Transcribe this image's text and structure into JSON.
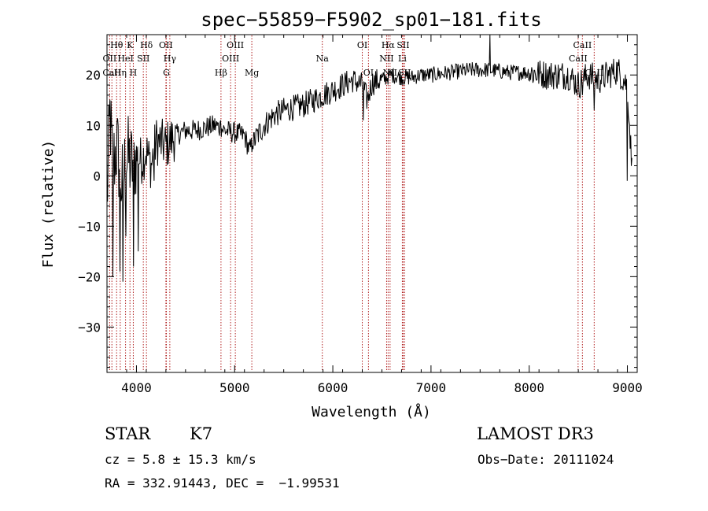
{
  "chart_data": {
    "type": "line",
    "title": "spec−55859−F5902_sp01−181.fits",
    "xlabel": "Wavelength (Å)",
    "ylabel": "Flux (relative)",
    "xlim": [
      3700,
      9100
    ],
    "ylim": [
      -39,
      28
    ],
    "xticks": [
      4000,
      5000,
      6000,
      7000,
      8000,
      9000
    ],
    "yticks": [
      -30,
      -20,
      -10,
      0,
      10,
      20
    ],
    "grid": false,
    "line_color": "#000000",
    "marker_color": "#b22222",
    "spectrum_knots": [
      [
        3700,
        -5
      ],
      [
        3730,
        12
      ],
      [
        3760,
        2
      ],
      [
        3800,
        6
      ],
      [
        3850,
        -2
      ],
      [
        3900,
        4
      ],
      [
        3950,
        2
      ],
      [
        4000,
        4
      ],
      [
        4050,
        3
      ],
      [
        4100,
        5
      ],
      [
        4150,
        2
      ],
      [
        4200,
        7
      ],
      [
        4300,
        6
      ],
      [
        4400,
        8
      ],
      [
        4500,
        9
      ],
      [
        4600,
        9
      ],
      [
        4700,
        9.5
      ],
      [
        4800,
        10
      ],
      [
        4900,
        9
      ],
      [
        5000,
        8.5
      ],
      [
        5100,
        8
      ],
      [
        5150,
        5
      ],
      [
        5200,
        7
      ],
      [
        5300,
        10
      ],
      [
        5400,
        12
      ],
      [
        5500,
        13
      ],
      [
        5600,
        13.5
      ],
      [
        5700,
        14
      ],
      [
        5800,
        15
      ],
      [
        5900,
        16
      ],
      [
        6000,
        17
      ],
      [
        6100,
        18
      ],
      [
        6200,
        19
      ],
      [
        6300,
        18
      ],
      [
        6350,
        15
      ],
      [
        6400,
        18.5
      ],
      [
        6500,
        19
      ],
      [
        6600,
        20
      ],
      [
        6700,
        19.5
      ],
      [
        6800,
        19.5
      ],
      [
        6900,
        20
      ],
      [
        7000,
        20
      ],
      [
        7200,
        20.5
      ],
      [
        7400,
        21
      ],
      [
        7600,
        21
      ],
      [
        7800,
        20.5
      ],
      [
        8000,
        20.5
      ],
      [
        8200,
        20
      ],
      [
        8400,
        20
      ],
      [
        8500,
        18
      ],
      [
        8600,
        20
      ],
      [
        8700,
        19
      ],
      [
        8800,
        20
      ],
      [
        8900,
        21
      ],
      [
        9000,
        18
      ],
      [
        9050,
        0
      ]
    ],
    "spectrum_features": [
      {
        "x": 3760,
        "y": -20
      },
      {
        "x": 3830,
        "y": -19
      },
      {
        "x": 3860,
        "y": -21
      },
      {
        "x": 3890,
        "y": -12
      },
      {
        "x": 3970,
        "y": -18
      },
      {
        "x": 4020,
        "y": -15
      },
      {
        "x": 4180,
        "y": -1
      },
      {
        "x": 4860,
        "y": 11
      },
      {
        "x": 5180,
        "y": 6
      },
      {
        "x": 6310,
        "y": 11
      },
      {
        "x": 7600,
        "y": 28
      },
      {
        "x": 8540,
        "y": 16
      },
      {
        "x": 8660,
        "y": 13
      },
      {
        "x": 9000,
        "y": -1
      }
    ],
    "spectral_lines": [
      {
        "label": "Hθ",
        "x": 3798,
        "row": 0
      },
      {
        "label": "K",
        "x": 3934,
        "row": 0
      },
      {
        "label": "Hδ",
        "x": 4102,
        "row": 0
      },
      {
        "label": "OII",
        "x": 4300,
        "row": 0
      },
      {
        "label": "OIII",
        "x": 5007,
        "row": 0
      },
      {
        "label": "OI",
        "x": 6300,
        "row": 0
      },
      {
        "label": "Hα",
        "x": 6563,
        "row": 0
      },
      {
        "label": "SII",
        "x": 6716,
        "row": 0
      },
      {
        "label": "CaII",
        "x": 8542,
        "row": 0
      },
      {
        "label": "OII",
        "x": 3727,
        "row": 1
      },
      {
        "label": "HeI",
        "x": 3889,
        "row": 1
      },
      {
        "label": "SII",
        "x": 4070,
        "row": 1
      },
      {
        "label": "Hγ",
        "x": 4340,
        "row": 1
      },
      {
        "label": "OIII",
        "x": 4959,
        "row": 1
      },
      {
        "label": "Na",
        "x": 5893,
        "row": 1
      },
      {
        "label": "NII",
        "x": 6548,
        "row": 1
      },
      {
        "label": "Li",
        "x": 6708,
        "row": 1
      },
      {
        "label": "CaII",
        "x": 8498,
        "row": 1
      },
      {
        "label": "CaII",
        "x": 3750,
        "row": 2
      },
      {
        "label": "Hη",
        "x": 3835,
        "row": 2
      },
      {
        "label": "H",
        "x": 3968,
        "row": 2
      },
      {
        "label": "G",
        "x": 4305,
        "row": 2
      },
      {
        "label": "Hβ",
        "x": 4861,
        "row": 2
      },
      {
        "label": "Mg",
        "x": 5175,
        "row": 2
      },
      {
        "label": "OI",
        "x": 6363,
        "row": 2
      },
      {
        "label": "NII",
        "x": 6583,
        "row": 2
      },
      {
        "label": "SII",
        "x": 6731,
        "row": 2
      },
      {
        "label": "CaII",
        "x": 8662,
        "row": 2
      }
    ]
  },
  "info": {
    "object_class": "STAR",
    "subclass": "K7",
    "survey": "LAMOST DR3",
    "cz": "cz = 5.8 ± 15.3 km/s",
    "obs_date": "Obs−Date: 20111024",
    "coords": "RA = 332.91443, DEC =  −1.99531"
  }
}
